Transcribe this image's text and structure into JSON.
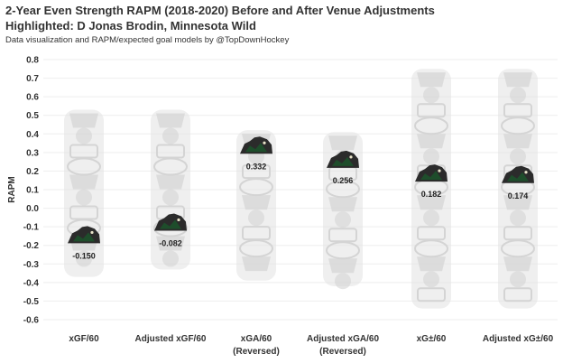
{
  "header": {
    "title": "2-Year Even Strength RAPM (2018-2020) Before and After Venue Adjustments",
    "subtitle": "Highlighted: D Jonas Brodin, Minnesota Wild",
    "credit": "Data visualization and RAPM/expected goal models by @TopDownHockey"
  },
  "colors": {
    "ghost_logo": "#e2e2e2",
    "ghost_logo_edge": "#d4d4d4",
    "highlight_logo": "#2b2b2b",
    "highlight_accent": "#1e4d2b",
    "gridline": "#eeeeee",
    "text": "#333333"
  },
  "chart_data": {
    "type": "scatter",
    "title": "2-Year Even Strength RAPM (2018-2020) Before and After Venue Adjustments",
    "ylabel": "RAPM",
    "xlabel": "",
    "ylim": [
      -0.6,
      0.8
    ],
    "yticks": [
      -0.6,
      -0.5,
      -0.4,
      -0.3,
      -0.2,
      -0.1,
      0.0,
      0.1,
      0.2,
      0.3,
      0.4,
      0.5,
      0.6,
      0.7,
      0.8
    ],
    "ytick_labels": [
      "-0.6",
      "-0.5",
      "-0.4",
      "-0.3",
      "-0.2",
      "-0.1",
      "0.0",
      "0.1",
      "0.2",
      "0.3",
      "0.4",
      "0.5",
      "0.6",
      "0.7",
      "0.8"
    ],
    "grid": true,
    "categories": [
      {
        "label": [
          "xGF/60"
        ],
        "highlight_value": -0.15,
        "highlight_label": "-0.150",
        "range": [
          -0.37,
          0.53
        ]
      },
      {
        "label": [
          "Adjusted xGF/60"
        ],
        "highlight_value": -0.082,
        "highlight_label": "-0.082",
        "range": [
          -0.33,
          0.53
        ]
      },
      {
        "label": [
          "xGA/60",
          "(Reversed)"
        ],
        "highlight_value": 0.332,
        "highlight_label": "0.332",
        "range": [
          -0.39,
          0.42
        ]
      },
      {
        "label": [
          "Adjusted xGA/60",
          "(Reversed)"
        ],
        "highlight_value": 0.256,
        "highlight_label": "0.256",
        "range": [
          -0.42,
          0.41
        ]
      },
      {
        "label": [
          "xG±/60"
        ],
        "highlight_value": 0.182,
        "highlight_label": "0.182",
        "range": [
          -0.54,
          0.75
        ]
      },
      {
        "label": [
          "Adjusted xG±/60"
        ],
        "highlight_value": 0.174,
        "highlight_label": "0.174",
        "range": [
          -0.54,
          0.75
        ]
      }
    ],
    "highlighted_player": "D Jonas Brodin, Minnesota Wild"
  }
}
